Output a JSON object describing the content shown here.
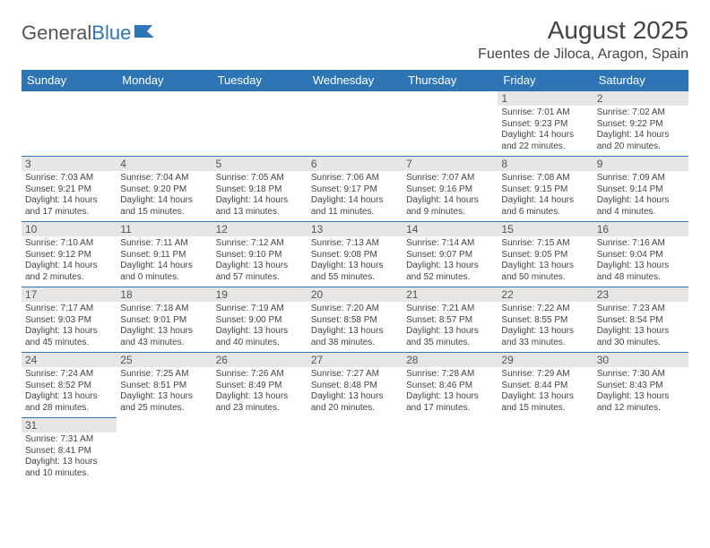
{
  "logo": {
    "text1": "General",
    "text2": "Blue"
  },
  "title": "August 2025",
  "location": "Fuentes de Jiloca, Aragon, Spain",
  "colors": {
    "header_bg": "#2e75b6",
    "header_text": "#ffffff",
    "daynum_bg": "#e6e6e6",
    "border": "#2e75b6",
    "text": "#444444"
  },
  "weekdays": [
    "Sunday",
    "Monday",
    "Tuesday",
    "Wednesday",
    "Thursday",
    "Friday",
    "Saturday"
  ],
  "weeks": [
    [
      null,
      null,
      null,
      null,
      null,
      {
        "n": "1",
        "sr": "Sunrise: 7:01 AM",
        "ss": "Sunset: 9:23 PM",
        "d1": "Daylight: 14 hours",
        "d2": "and 22 minutes."
      },
      {
        "n": "2",
        "sr": "Sunrise: 7:02 AM",
        "ss": "Sunset: 9:22 PM",
        "d1": "Daylight: 14 hours",
        "d2": "and 20 minutes."
      }
    ],
    [
      {
        "n": "3",
        "sr": "Sunrise: 7:03 AM",
        "ss": "Sunset: 9:21 PM",
        "d1": "Daylight: 14 hours",
        "d2": "and 17 minutes."
      },
      {
        "n": "4",
        "sr": "Sunrise: 7:04 AM",
        "ss": "Sunset: 9:20 PM",
        "d1": "Daylight: 14 hours",
        "d2": "and 15 minutes."
      },
      {
        "n": "5",
        "sr": "Sunrise: 7:05 AM",
        "ss": "Sunset: 9:18 PM",
        "d1": "Daylight: 14 hours",
        "d2": "and 13 minutes."
      },
      {
        "n": "6",
        "sr": "Sunrise: 7:06 AM",
        "ss": "Sunset: 9:17 PM",
        "d1": "Daylight: 14 hours",
        "d2": "and 11 minutes."
      },
      {
        "n": "7",
        "sr": "Sunrise: 7:07 AM",
        "ss": "Sunset: 9:16 PM",
        "d1": "Daylight: 14 hours",
        "d2": "and 9 minutes."
      },
      {
        "n": "8",
        "sr": "Sunrise: 7:08 AM",
        "ss": "Sunset: 9:15 PM",
        "d1": "Daylight: 14 hours",
        "d2": "and 6 minutes."
      },
      {
        "n": "9",
        "sr": "Sunrise: 7:09 AM",
        "ss": "Sunset: 9:14 PM",
        "d1": "Daylight: 14 hours",
        "d2": "and 4 minutes."
      }
    ],
    [
      {
        "n": "10",
        "sr": "Sunrise: 7:10 AM",
        "ss": "Sunset: 9:12 PM",
        "d1": "Daylight: 14 hours",
        "d2": "and 2 minutes."
      },
      {
        "n": "11",
        "sr": "Sunrise: 7:11 AM",
        "ss": "Sunset: 9:11 PM",
        "d1": "Daylight: 14 hours",
        "d2": "and 0 minutes."
      },
      {
        "n": "12",
        "sr": "Sunrise: 7:12 AM",
        "ss": "Sunset: 9:10 PM",
        "d1": "Daylight: 13 hours",
        "d2": "and 57 minutes."
      },
      {
        "n": "13",
        "sr": "Sunrise: 7:13 AM",
        "ss": "Sunset: 9:08 PM",
        "d1": "Daylight: 13 hours",
        "d2": "and 55 minutes."
      },
      {
        "n": "14",
        "sr": "Sunrise: 7:14 AM",
        "ss": "Sunset: 9:07 PM",
        "d1": "Daylight: 13 hours",
        "d2": "and 52 minutes."
      },
      {
        "n": "15",
        "sr": "Sunrise: 7:15 AM",
        "ss": "Sunset: 9:05 PM",
        "d1": "Daylight: 13 hours",
        "d2": "and 50 minutes."
      },
      {
        "n": "16",
        "sr": "Sunrise: 7:16 AM",
        "ss": "Sunset: 9:04 PM",
        "d1": "Daylight: 13 hours",
        "d2": "and 48 minutes."
      }
    ],
    [
      {
        "n": "17",
        "sr": "Sunrise: 7:17 AM",
        "ss": "Sunset: 9:03 PM",
        "d1": "Daylight: 13 hours",
        "d2": "and 45 minutes."
      },
      {
        "n": "18",
        "sr": "Sunrise: 7:18 AM",
        "ss": "Sunset: 9:01 PM",
        "d1": "Daylight: 13 hours",
        "d2": "and 43 minutes."
      },
      {
        "n": "19",
        "sr": "Sunrise: 7:19 AM",
        "ss": "Sunset: 9:00 PM",
        "d1": "Daylight: 13 hours",
        "d2": "and 40 minutes."
      },
      {
        "n": "20",
        "sr": "Sunrise: 7:20 AM",
        "ss": "Sunset: 8:58 PM",
        "d1": "Daylight: 13 hours",
        "d2": "and 38 minutes."
      },
      {
        "n": "21",
        "sr": "Sunrise: 7:21 AM",
        "ss": "Sunset: 8:57 PM",
        "d1": "Daylight: 13 hours",
        "d2": "and 35 minutes."
      },
      {
        "n": "22",
        "sr": "Sunrise: 7:22 AM",
        "ss": "Sunset: 8:55 PM",
        "d1": "Daylight: 13 hours",
        "d2": "and 33 minutes."
      },
      {
        "n": "23",
        "sr": "Sunrise: 7:23 AM",
        "ss": "Sunset: 8:54 PM",
        "d1": "Daylight: 13 hours",
        "d2": "and 30 minutes."
      }
    ],
    [
      {
        "n": "24",
        "sr": "Sunrise: 7:24 AM",
        "ss": "Sunset: 8:52 PM",
        "d1": "Daylight: 13 hours",
        "d2": "and 28 minutes."
      },
      {
        "n": "25",
        "sr": "Sunrise: 7:25 AM",
        "ss": "Sunset: 8:51 PM",
        "d1": "Daylight: 13 hours",
        "d2": "and 25 minutes."
      },
      {
        "n": "26",
        "sr": "Sunrise: 7:26 AM",
        "ss": "Sunset: 8:49 PM",
        "d1": "Daylight: 13 hours",
        "d2": "and 23 minutes."
      },
      {
        "n": "27",
        "sr": "Sunrise: 7:27 AM",
        "ss": "Sunset: 8:48 PM",
        "d1": "Daylight: 13 hours",
        "d2": "and 20 minutes."
      },
      {
        "n": "28",
        "sr": "Sunrise: 7:28 AM",
        "ss": "Sunset: 8:46 PM",
        "d1": "Daylight: 13 hours",
        "d2": "and 17 minutes."
      },
      {
        "n": "29",
        "sr": "Sunrise: 7:29 AM",
        "ss": "Sunset: 8:44 PM",
        "d1": "Daylight: 13 hours",
        "d2": "and 15 minutes."
      },
      {
        "n": "30",
        "sr": "Sunrise: 7:30 AM",
        "ss": "Sunset: 8:43 PM",
        "d1": "Daylight: 13 hours",
        "d2": "and 12 minutes."
      }
    ],
    [
      {
        "n": "31",
        "sr": "Sunrise: 7:31 AM",
        "ss": "Sunset: 8:41 PM",
        "d1": "Daylight: 13 hours",
        "d2": "and 10 minutes."
      },
      null,
      null,
      null,
      null,
      null,
      null
    ]
  ]
}
